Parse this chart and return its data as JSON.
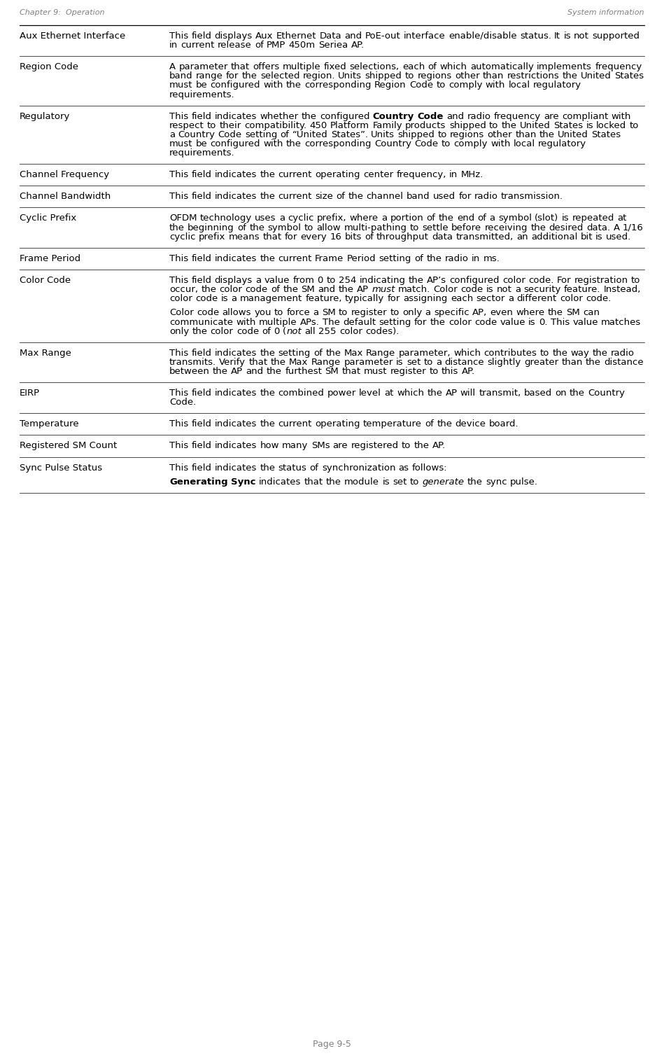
{
  "header_left": "Chapter 9:  Operation",
  "header_right": "System information",
  "footer": "Page 9-5",
  "header_color": "#808080",
  "text_color": "#000000",
  "line_color": "#000000",
  "background_color": "#ffffff",
  "rows": [
    {
      "label": "Aux Ethernet Interface",
      "paragraphs": [
        [
          {
            "text": "This field displays Aux Ethernet Data and PoE-out interface enable/disable status. It is not supported in current release of PMP 450m Seriea AP.",
            "bold": false,
            "italic": false
          }
        ]
      ]
    },
    {
      "label": "Region Code",
      "paragraphs": [
        [
          {
            "text": "A parameter that offers multiple fixed selections, each of which automatically implements frequency band range for the selected region. Units shipped to regions other than restrictions the United States must be configured with the corresponding Region Code to comply with local regulatory requirements.",
            "bold": false,
            "italic": false
          }
        ]
      ]
    },
    {
      "label": "Regulatory",
      "paragraphs": [
        [
          {
            "text": "This field indicates whether the configured ",
            "bold": false,
            "italic": false
          },
          {
            "text": "Country Code",
            "bold": true,
            "italic": false
          },
          {
            "text": " and radio frequency are compliant with respect to their compatibility. 450 Platform Family products shipped to the United States is locked to a Country Code setting of “United States”. Units shipped to regions other than the United States must be configured with the corresponding Country Code to comply with local regulatory requirements.",
            "bold": false,
            "italic": false
          }
        ]
      ]
    },
    {
      "label": "Channel Frequency",
      "paragraphs": [
        [
          {
            "text": "This field indicates the current operating center frequency, in MHz.",
            "bold": false,
            "italic": false
          }
        ]
      ]
    },
    {
      "label": "Channel Bandwidth",
      "paragraphs": [
        [
          {
            "text": "This field indicates the current size of the channel band used for radio transmission.",
            "bold": false,
            "italic": false
          }
        ]
      ]
    },
    {
      "label": "Cyclic Prefix",
      "paragraphs": [
        [
          {
            "text": "OFDM technology uses a cyclic prefix, where a portion of the end of a symbol (slot) is repeated at the beginning of the symbol to allow multi-pathing to settle before receiving the desired data. A 1/16 cyclic prefix means that for every 16 bits of throughput data transmitted, an additional bit is used.",
            "bold": false,
            "italic": false
          }
        ]
      ]
    },
    {
      "label": "Frame Period",
      "paragraphs": [
        [
          {
            "text": "This field indicates the current Frame Period setting of the radio in ms.",
            "bold": false,
            "italic": false
          }
        ]
      ]
    },
    {
      "label": "Color Code",
      "paragraphs": [
        [
          {
            "text": "This field displays a value from 0 to 254 indicating the AP’s configured color code. For registration to occur, the color code of the SM and the AP ",
            "bold": false,
            "italic": false
          },
          {
            "text": "must",
            "bold": false,
            "italic": true
          },
          {
            "text": " match. Color code is not a security feature. Instead, color code is a management feature, typically for assigning each sector a different color code.",
            "bold": false,
            "italic": false
          }
        ],
        [
          {
            "text": "Color code allows you to force a SM to register to only a specific AP, even where the SM can communicate with multiple APs. The default setting for the color code value is 0. This value matches only the color code of 0 (",
            "bold": false,
            "italic": false
          },
          {
            "text": "not",
            "bold": false,
            "italic": true
          },
          {
            "text": " all 255 color codes).",
            "bold": false,
            "italic": false
          }
        ]
      ]
    },
    {
      "label": "Max Range",
      "paragraphs": [
        [
          {
            "text": "This field indicates the setting of the Max Range parameter, which contributes to the way the radio transmits. Verify that the Max Range parameter is set to a distance slightly greater than the distance between the AP and the furthest SM that must register to this AP.",
            "bold": false,
            "italic": false
          }
        ]
      ]
    },
    {
      "label": "EIRP",
      "paragraphs": [
        [
          {
            "text": "This field indicates the combined power level at which the AP will transmit, based on the Country Code.",
            "bold": false,
            "italic": false
          }
        ]
      ]
    },
    {
      "label": "Temperature",
      "paragraphs": [
        [
          {
            "text": "This field indicates the current operating temperature of the device board.",
            "bold": false,
            "italic": false
          }
        ]
      ]
    },
    {
      "label": "Registered SM Count",
      "paragraphs": [
        [
          {
            "text": "This field indicates how many SMs are registered to the AP.",
            "bold": false,
            "italic": false
          }
        ]
      ]
    },
    {
      "label": "Sync Pulse Status",
      "paragraphs": [
        [
          {
            "text": "This field indicates the status of synchronization as follows:",
            "bold": false,
            "italic": false
          }
        ],
        [
          {
            "text": "Generating Sync",
            "bold": true,
            "italic": false
          },
          {
            "text": " indicates that the module is set to ",
            "bold": false,
            "italic": false
          },
          {
            "text": "generate",
            "bold": false,
            "italic": true
          },
          {
            "text": " the sync pulse.",
            "bold": false,
            "italic": false
          }
        ]
      ]
    }
  ]
}
